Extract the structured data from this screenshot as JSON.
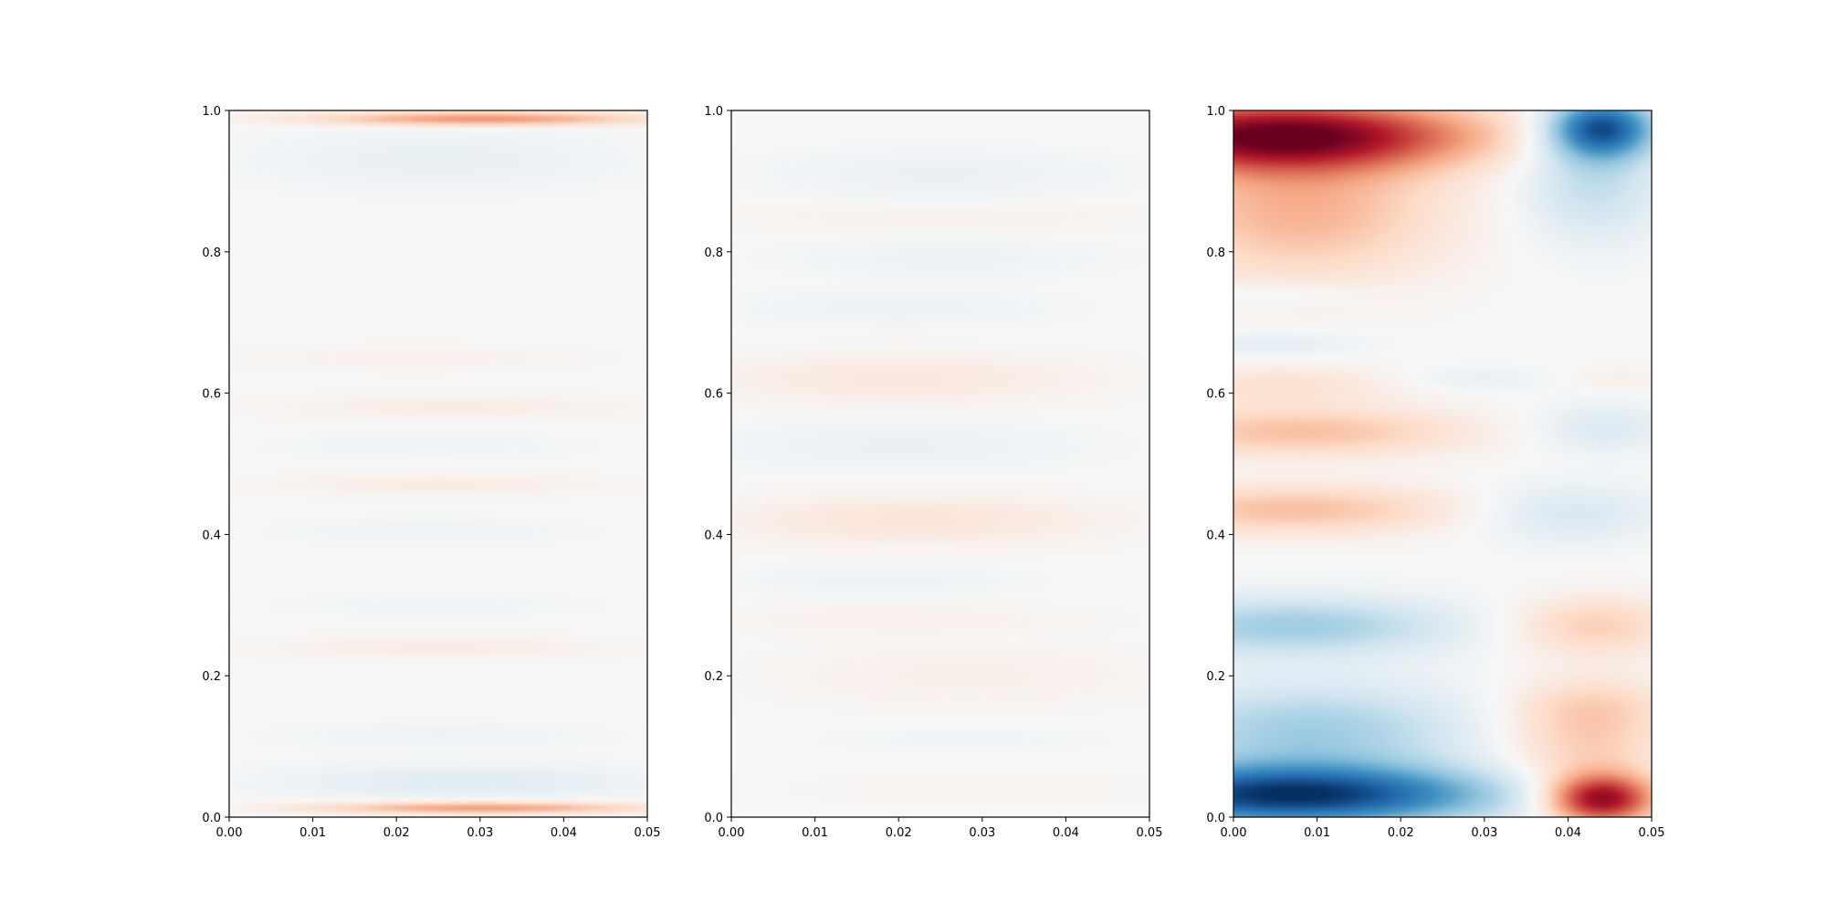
{
  "chart_data": [
    {
      "type": "heatmap",
      "title": "",
      "xlabel": "",
      "ylabel": "",
      "xlim": [
        0.0,
        0.05
      ],
      "ylim": [
        0.0,
        1.0
      ],
      "x_ticks": [
        "0.00",
        "0.01",
        "0.02",
        "0.03",
        "0.04",
        "0.05"
      ],
      "y_ticks": [
        "0.0",
        "0.2",
        "0.4",
        "0.6",
        "0.8",
        "1.0"
      ],
      "colormap": "RdBu_r",
      "color_range": [
        -1,
        1
      ],
      "grid": false,
      "features": [
        {
          "x": 0.03,
          "y": 0.988,
          "sx": 0.014,
          "sy": 0.007,
          "value": 0.45
        },
        {
          "x": 0.03,
          "y": 0.013,
          "sx": 0.014,
          "sy": 0.006,
          "value": 0.42
        },
        {
          "x": 0.028,
          "y": 0.05,
          "sx": 0.016,
          "sy": 0.018,
          "value": -0.12
        },
        {
          "x": 0.025,
          "y": 0.93,
          "sx": 0.016,
          "sy": 0.03,
          "value": -0.08
        },
        {
          "x": 0.025,
          "y": 0.115,
          "sx": 0.014,
          "sy": 0.012,
          "value": -0.05
        },
        {
          "x": 0.025,
          "y": 0.24,
          "sx": 0.015,
          "sy": 0.01,
          "value": 0.08
        },
        {
          "x": 0.025,
          "y": 0.3,
          "sx": 0.014,
          "sy": 0.01,
          "value": -0.04
        },
        {
          "x": 0.024,
          "y": 0.405,
          "sx": 0.013,
          "sy": 0.012,
          "value": -0.05
        },
        {
          "x": 0.025,
          "y": 0.47,
          "sx": 0.014,
          "sy": 0.01,
          "value": 0.08
        },
        {
          "x": 0.024,
          "y": 0.525,
          "sx": 0.013,
          "sy": 0.01,
          "value": -0.05
        },
        {
          "x": 0.027,
          "y": 0.58,
          "sx": 0.015,
          "sy": 0.011,
          "value": 0.08
        },
        {
          "x": 0.022,
          "y": 0.65,
          "sx": 0.014,
          "sy": 0.012,
          "value": 0.05
        }
      ]
    },
    {
      "type": "heatmap",
      "title": "",
      "xlabel": "",
      "ylabel": "",
      "xlim": [
        0.0,
        0.05
      ],
      "ylim": [
        0.0,
        1.0
      ],
      "x_ticks": [
        "0.00",
        "0.01",
        "0.02",
        "0.03",
        "0.04",
        "0.05"
      ],
      "y_ticks": [
        "0.0",
        "0.2",
        "0.4",
        "0.6",
        "0.8",
        "1.0"
      ],
      "colormap": "RdBu_r",
      "color_range": [
        -1,
        1
      ],
      "grid": false,
      "features": [
        {
          "x": 0.025,
          "y": 0.91,
          "sx": 0.015,
          "sy": 0.025,
          "value": -0.07
        },
        {
          "x": 0.025,
          "y": 0.85,
          "sx": 0.02,
          "sy": 0.012,
          "value": 0.05
        },
        {
          "x": 0.026,
          "y": 0.79,
          "sx": 0.014,
          "sy": 0.018,
          "value": -0.06
        },
        {
          "x": 0.02,
          "y": 0.72,
          "sx": 0.014,
          "sy": 0.018,
          "value": -0.06
        },
        {
          "x": 0.02,
          "y": 0.62,
          "sx": 0.016,
          "sy": 0.025,
          "value": 0.11
        },
        {
          "x": 0.02,
          "y": 0.525,
          "sx": 0.016,
          "sy": 0.025,
          "value": -0.07
        },
        {
          "x": 0.022,
          "y": 0.42,
          "sx": 0.016,
          "sy": 0.025,
          "value": 0.13
        },
        {
          "x": 0.018,
          "y": 0.335,
          "sx": 0.012,
          "sy": 0.014,
          "value": -0.06
        },
        {
          "x": 0.02,
          "y": 0.28,
          "sx": 0.016,
          "sy": 0.014,
          "value": 0.05
        },
        {
          "x": 0.028,
          "y": 0.2,
          "sx": 0.016,
          "sy": 0.03,
          "value": 0.06
        },
        {
          "x": 0.028,
          "y": 0.11,
          "sx": 0.012,
          "sy": 0.01,
          "value": -0.04
        },
        {
          "x": 0.03,
          "y": 0.04,
          "sx": 0.016,
          "sy": 0.014,
          "value": 0.03
        }
      ]
    },
    {
      "type": "heatmap",
      "title": "",
      "xlabel": "",
      "ylabel": "",
      "xlim": [
        0.0,
        0.05
      ],
      "ylim": [
        0.0,
        1.0
      ],
      "x_ticks": [
        "0.00",
        "0.01",
        "0.02",
        "0.03",
        "0.04",
        "0.05"
      ],
      "y_ticks": [
        "0.0",
        "0.2",
        "0.4",
        "0.6",
        "0.8",
        "1.0"
      ],
      "colormap": "RdBu_r",
      "color_range": [
        -1,
        1
      ],
      "grid": false,
      "features": [
        {
          "x": 0.006,
          "y": 0.965,
          "sx": 0.016,
          "sy": 0.035,
          "value": 0.95
        },
        {
          "x": 0.008,
          "y": 0.86,
          "sx": 0.012,
          "sy": 0.07,
          "value": 0.35
        },
        {
          "x": 0.044,
          "y": 0.975,
          "sx": 0.0045,
          "sy": 0.03,
          "value": -0.85
        },
        {
          "x": 0.043,
          "y": 0.9,
          "sx": 0.006,
          "sy": 0.06,
          "value": -0.25
        },
        {
          "x": 0.007,
          "y": 0.03,
          "sx": 0.017,
          "sy": 0.03,
          "value": -0.95
        },
        {
          "x": 0.009,
          "y": 0.12,
          "sx": 0.014,
          "sy": 0.05,
          "value": -0.35
        },
        {
          "x": 0.044,
          "y": 0.025,
          "sx": 0.0045,
          "sy": 0.025,
          "value": 0.9
        },
        {
          "x": 0.042,
          "y": 0.1,
          "sx": 0.007,
          "sy": 0.05,
          "value": 0.25
        },
        {
          "x": 0.007,
          "y": 0.27,
          "sx": 0.014,
          "sy": 0.03,
          "value": -0.35
        },
        {
          "x": 0.007,
          "y": 0.435,
          "sx": 0.014,
          "sy": 0.025,
          "value": 0.3
        },
        {
          "x": 0.008,
          "y": 0.545,
          "sx": 0.014,
          "sy": 0.025,
          "value": 0.3
        },
        {
          "x": 0.005,
          "y": 0.61,
          "sx": 0.01,
          "sy": 0.02,
          "value": 0.15
        },
        {
          "x": 0.005,
          "y": 0.67,
          "sx": 0.008,
          "sy": 0.012,
          "value": -0.1
        },
        {
          "x": 0.005,
          "y": 0.74,
          "sx": 0.008,
          "sy": 0.012,
          "value": -0.08
        },
        {
          "x": 0.043,
          "y": 0.27,
          "sx": 0.007,
          "sy": 0.03,
          "value": 0.25
        },
        {
          "x": 0.043,
          "y": 0.16,
          "sx": 0.007,
          "sy": 0.03,
          "value": 0.15
        },
        {
          "x": 0.04,
          "y": 0.43,
          "sx": 0.008,
          "sy": 0.03,
          "value": -0.17
        },
        {
          "x": 0.044,
          "y": 0.55,
          "sx": 0.006,
          "sy": 0.025,
          "value": -0.15
        },
        {
          "x": 0.029,
          "y": 0.62,
          "sx": 0.006,
          "sy": 0.012,
          "value": -0.08
        },
        {
          "x": 0.046,
          "y": 0.62,
          "sx": 0.004,
          "sy": 0.012,
          "value": 0.06
        }
      ]
    }
  ]
}
